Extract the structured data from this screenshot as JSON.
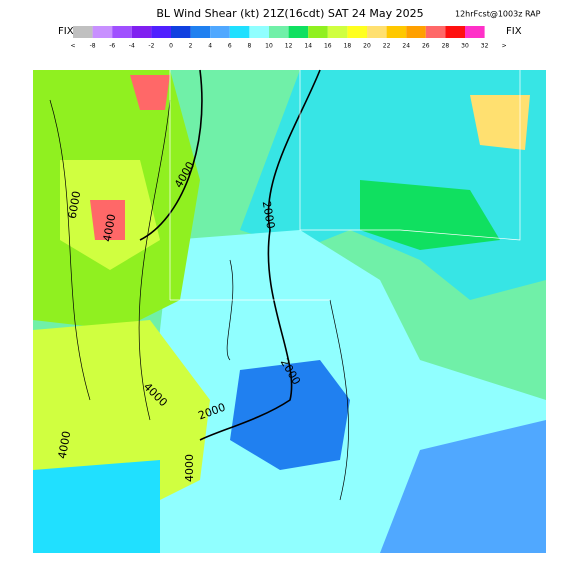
{
  "header": {
    "title": "BL Wind Shear (kt) 21Z(16cdt) SAT 24 May 2025",
    "subtitle": "12hrFcst@1003z RAP",
    "fix_left": "FIX",
    "fix_right": "FIX"
  },
  "colorbar": {
    "labels": [
      "<",
      "-8",
      "-6",
      "-4",
      "-2",
      "0",
      "2",
      "4",
      "6",
      "8",
      "10",
      "12",
      "14",
      "16",
      "18",
      "20",
      "22",
      "24",
      "26",
      "28",
      "30",
      "32",
      ">"
    ],
    "colors": [
      "#c0c0c0",
      "#c890ff",
      "#a050ff",
      "#8020f0",
      "#5020ff",
      "#1040e0",
      "#2080f0",
      "#50a8ff",
      "#20e0ff",
      "#90ffff",
      "#70f0a8",
      "#10e060",
      "#90f020",
      "#d0ff40",
      "#ffff20",
      "#ffe070",
      "#ffc800",
      "#ffa000",
      "#ff6868",
      "#ff1010",
      "#ff30c8"
    ]
  },
  "contour_labels": [
    "6000",
    "4000",
    "4000",
    "2000",
    "2000",
    "4000",
    "2000",
    "4000",
    "4000"
  ]
}
